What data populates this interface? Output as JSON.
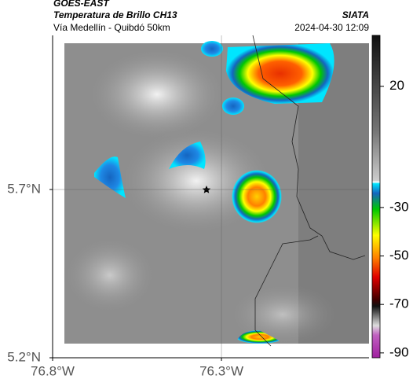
{
  "header": {
    "title": "GOES-EAST",
    "subtitle": "Temperatura de Brillo CH13",
    "source": "SIATA",
    "region": "Vía Medellín - Quibdó 50km",
    "datetime": "2024-04-30 12:09"
  },
  "map": {
    "xlim": [
      -76.8,
      -75.863
    ],
    "ylim": [
      5.2,
      6.158
    ],
    "xticks": [
      {
        "value": -76.8,
        "label": "76.8°W"
      },
      {
        "value": -76.3,
        "label": "76.3°W"
      }
    ],
    "yticks": [
      {
        "value": 5.2,
        "label": "5.2°N"
      },
      {
        "value": 5.7,
        "label": "5.7°N"
      }
    ],
    "grid": true
  },
  "colorbar": {
    "lim": [
      -92,
      41
    ],
    "ticks": [
      20,
      -30,
      -50,
      -70,
      -90
    ]
  }
}
